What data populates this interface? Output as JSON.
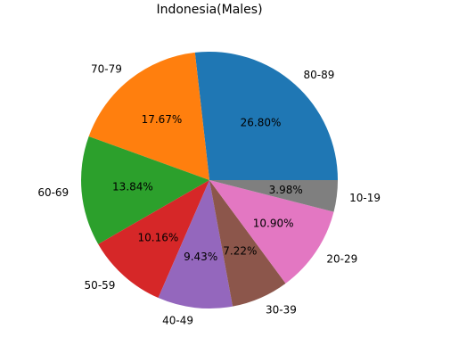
{
  "chart_data": {
    "type": "pie",
    "title": "Indonesia(Males)",
    "categories": [
      "80-89",
      "70-79",
      "60-69",
      "50-59",
      "40-49",
      "30-39",
      "20-29",
      "10-19"
    ],
    "values": [
      26.8,
      17.67,
      13.84,
      10.16,
      9.43,
      7.22,
      10.9,
      3.98
    ],
    "value_labels": [
      "26.80%",
      "17.67%",
      "13.84%",
      "10.16%",
      "9.43%",
      "7.22%",
      "10.90%",
      "3.98%"
    ],
    "colors": [
      "#1f77b4",
      "#ff7f0e",
      "#2ca02c",
      "#d62728",
      "#9467bd",
      "#8c564b",
      "#e377c2",
      "#7f7f7f"
    ],
    "start_angle_deg": 0,
    "direction": "counterclockwise",
    "legend": "none"
  }
}
